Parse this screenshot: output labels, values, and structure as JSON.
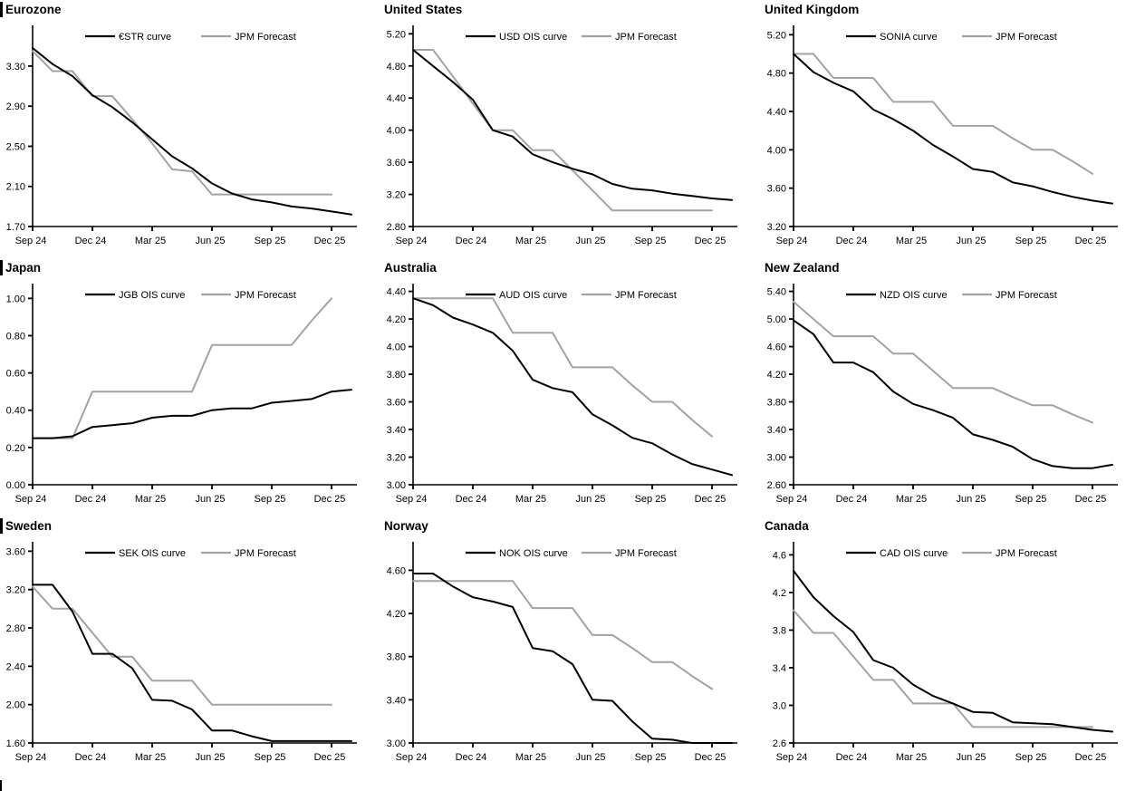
{
  "page": {
    "background": "#ffffff",
    "columns": 3,
    "rows": 3
  },
  "colors": {
    "main_line": "#000000",
    "forecast_line": "#a3a3a3",
    "axis": "#000000",
    "text": "#000000"
  },
  "chart_data": [
    {
      "type": "line",
      "title": "Eurozone",
      "section_bar": true,
      "x_ticks": [
        "Sep 24",
        "Dec 24",
        "Mar 25",
        "Jun 25",
        "Sep 25",
        "Dec 25"
      ],
      "x_tick_indices": [
        0,
        3,
        6,
        9,
        12,
        15
      ],
      "x_domain_max": 16,
      "ylim": [
        1.7,
        3.67
      ],
      "yticks": [
        "1.70",
        "2.10",
        "2.50",
        "2.90",
        "3.30"
      ],
      "grid": false,
      "legend_position": "top-center",
      "series": [
        {
          "name": "€STR curve",
          "role": "main",
          "values": [
            3.48,
            3.32,
            3.2,
            3.01,
            2.89,
            2.74,
            2.57,
            2.4,
            2.28,
            2.13,
            2.03,
            1.97,
            1.94,
            1.9,
            1.88,
            1.85,
            1.82
          ]
        },
        {
          "name": "JPM Forecast",
          "role": "forecast",
          "values": [
            3.45,
            3.25,
            3.25,
            3.0,
            3.0,
            2.77,
            2.53,
            2.27,
            2.25,
            2.02,
            2.02,
            2.02,
            2.02,
            2.02,
            2.02,
            2.02
          ]
        }
      ]
    },
    {
      "type": "line",
      "title": "United States",
      "section_bar": false,
      "x_ticks": [
        "Sep 24",
        "Dec 24",
        "Mar 25",
        "Jun 25",
        "Sep 25",
        "Dec 25"
      ],
      "x_tick_indices": [
        0,
        3,
        6,
        9,
        12,
        15
      ],
      "x_domain_max": 16,
      "ylim": [
        2.8,
        5.26
      ],
      "yticks": [
        "2.80",
        "3.20",
        "3.60",
        "4.00",
        "4.40",
        "4.80",
        "5.20"
      ],
      "grid": false,
      "legend_position": "top-center",
      "series": [
        {
          "name": "USD OIS curve",
          "role": "main",
          "values": [
            5.0,
            4.8,
            4.6,
            4.38,
            4.0,
            3.92,
            3.7,
            3.6,
            3.52,
            3.45,
            3.33,
            3.27,
            3.25,
            3.21,
            3.18,
            3.15,
            3.13
          ]
        },
        {
          "name": "JPM Forecast",
          "role": "forecast",
          "values": [
            5.0,
            5.0,
            4.67,
            4.33,
            4.0,
            4.0,
            3.75,
            3.75,
            3.5,
            3.25,
            3.0,
            3.0,
            3.0,
            3.0,
            3.0,
            3.0
          ]
        }
      ]
    },
    {
      "type": "line",
      "title": "United Kingdom",
      "section_bar": false,
      "x_ticks": [
        "Sep 24",
        "Dec 24",
        "Mar 25",
        "Jun 25",
        "Sep 25",
        "Dec 25"
      ],
      "x_tick_indices": [
        0,
        3,
        6,
        9,
        12,
        15
      ],
      "x_domain_max": 16,
      "ylim": [
        3.2,
        5.26
      ],
      "yticks": [
        "3.20",
        "3.60",
        "4.00",
        "4.40",
        "4.80",
        "5.20"
      ],
      "grid": false,
      "legend_position": "top-center",
      "series": [
        {
          "name": "SONIA curve",
          "role": "main",
          "values": [
            5.0,
            4.81,
            4.7,
            4.61,
            4.42,
            4.32,
            4.2,
            4.05,
            3.93,
            3.8,
            3.77,
            3.66,
            3.62,
            3.56,
            3.51,
            3.47,
            3.44
          ]
        },
        {
          "name": "JPM Forecast",
          "role": "forecast",
          "values": [
            5.0,
            5.0,
            4.75,
            4.75,
            4.75,
            4.5,
            4.5,
            4.5,
            4.25,
            4.25,
            4.25,
            4.12,
            4.0,
            4.0,
            3.88,
            3.75
          ]
        }
      ]
    },
    {
      "type": "line",
      "title": "Japan",
      "section_bar": true,
      "x_ticks": [
        "Sep 24",
        "Dec 24",
        "Mar 25",
        "Jun 25",
        "Sep 25",
        "Dec 25"
      ],
      "x_tick_indices": [
        0,
        3,
        6,
        9,
        12,
        15
      ],
      "x_domain_max": 16,
      "ylim": [
        0.0,
        1.06
      ],
      "yticks": [
        "0.00",
        "0.20",
        "0.40",
        "0.60",
        "0.80",
        "1.00"
      ],
      "grid": false,
      "legend_position": "top-center",
      "series": [
        {
          "name": "JGB OIS curve",
          "role": "main",
          "values": [
            0.25,
            0.25,
            0.26,
            0.31,
            0.32,
            0.33,
            0.36,
            0.37,
            0.37,
            0.4,
            0.41,
            0.41,
            0.44,
            0.45,
            0.46,
            0.5,
            0.51
          ]
        },
        {
          "name": "JPM Forecast",
          "role": "forecast",
          "values": [
            0.25,
            0.25,
            0.25,
            0.5,
            0.5,
            0.5,
            0.5,
            0.5,
            0.5,
            0.75,
            0.75,
            0.75,
            0.75,
            0.75,
            0.88,
            1.0
          ]
        }
      ]
    },
    {
      "type": "line",
      "title": "Australia",
      "section_bar": false,
      "x_ticks": [
        "Sep 24",
        "Dec 24",
        "Mar 25",
        "Jun 25",
        "Sep 25",
        "Dec 25"
      ],
      "x_tick_indices": [
        0,
        3,
        6,
        9,
        12,
        15
      ],
      "x_domain_max": 16,
      "ylim": [
        3.0,
        4.43
      ],
      "yticks": [
        "3.00",
        "3.20",
        "3.40",
        "3.60",
        "3.80",
        "4.00",
        "4.20",
        "4.40"
      ],
      "grid": false,
      "legend_position": "top-center",
      "series": [
        {
          "name": "AUD OIS curve",
          "role": "main",
          "values": [
            4.35,
            4.3,
            4.21,
            4.16,
            4.1,
            3.97,
            3.76,
            3.7,
            3.67,
            3.51,
            3.43,
            3.34,
            3.3,
            3.22,
            3.15,
            3.11,
            3.07
          ]
        },
        {
          "name": "JPM Forecast",
          "role": "forecast",
          "values": [
            4.35,
            4.35,
            4.35,
            4.35,
            4.35,
            4.1,
            4.1,
            4.1,
            3.85,
            3.85,
            3.85,
            3.72,
            3.6,
            3.6,
            3.47,
            3.35
          ]
        }
      ]
    },
    {
      "type": "line",
      "title": "New Zealand",
      "section_bar": false,
      "x_ticks": [
        "Sep 24",
        "Dec 24",
        "Mar 25",
        "Jun 25",
        "Sep 25",
        "Dec 25"
      ],
      "x_tick_indices": [
        0,
        3,
        6,
        9,
        12,
        15
      ],
      "x_domain_max": 16,
      "ylim": [
        2.6,
        5.46
      ],
      "yticks": [
        "2.60",
        "3.00",
        "3.40",
        "3.80",
        "4.20",
        "4.60",
        "5.00",
        "5.40"
      ],
      "grid": false,
      "legend_position": "top-center",
      "series": [
        {
          "name": "NZD OIS curve",
          "role": "main",
          "values": [
            4.98,
            4.78,
            4.37,
            4.37,
            4.23,
            3.95,
            3.77,
            3.68,
            3.57,
            3.33,
            3.25,
            3.15,
            2.97,
            2.87,
            2.84,
            2.84,
            2.89
          ]
        },
        {
          "name": "JPM Forecast",
          "role": "forecast",
          "values": [
            5.25,
            5.0,
            4.75,
            4.75,
            4.75,
            4.5,
            4.5,
            4.25,
            4.0,
            4.0,
            4.0,
            3.87,
            3.75,
            3.75,
            3.62,
            3.5
          ]
        }
      ]
    },
    {
      "type": "line",
      "title": "Sweden",
      "section_bar": true,
      "x_ticks": [
        "Sep 24",
        "Dec 24",
        "Mar 25",
        "Jun 25",
        "Sep 25",
        "Dec 25"
      ],
      "x_tick_indices": [
        0,
        3,
        6,
        9,
        12,
        15
      ],
      "x_domain_max": 16,
      "ylim": [
        1.6,
        3.66
      ],
      "yticks": [
        "1.60",
        "2.00",
        "2.40",
        "2.80",
        "3.20",
        "3.60"
      ],
      "grid": false,
      "legend_position": "top-center",
      "series": [
        {
          "name": "SEK OIS curve",
          "role": "main",
          "values": [
            3.25,
            3.25,
            2.97,
            2.53,
            2.53,
            2.38,
            2.05,
            2.04,
            1.95,
            1.73,
            1.73,
            1.67,
            1.62,
            1.62,
            1.62,
            1.62,
            1.62
          ]
        },
        {
          "name": "JPM Forecast",
          "role": "forecast",
          "values": [
            3.23,
            3.0,
            3.0,
            2.75,
            2.5,
            2.5,
            2.25,
            2.25,
            2.25,
            2.0,
            2.0,
            2.0,
            2.0,
            2.0,
            2.0,
            2.0
          ]
        }
      ]
    },
    {
      "type": "line",
      "title": "Norway",
      "section_bar": false,
      "x_ticks": [
        "Sep 24",
        "Dec 24",
        "Mar 25",
        "Jun 25",
        "Sep 25",
        "Dec 25"
      ],
      "x_tick_indices": [
        0,
        3,
        6,
        9,
        12,
        15
      ],
      "x_domain_max": 16,
      "ylim": [
        3.0,
        4.83
      ],
      "yticks": [
        "3.00",
        "3.40",
        "3.80",
        "4.20",
        "4.60"
      ],
      "grid": false,
      "legend_position": "top-center",
      "series": [
        {
          "name": "NOK OIS curve",
          "role": "main",
          "values": [
            4.57,
            4.57,
            4.45,
            4.35,
            4.31,
            4.26,
            3.88,
            3.85,
            3.73,
            3.4,
            3.39,
            3.2,
            3.04,
            3.03,
            3.0,
            3.0,
            3.0
          ]
        },
        {
          "name": "JPM Forecast",
          "role": "forecast",
          "values": [
            4.5,
            4.5,
            4.5,
            4.5,
            4.5,
            4.5,
            4.25,
            4.25,
            4.25,
            4.0,
            4.0,
            3.88,
            3.75,
            3.75,
            3.62,
            3.5
          ]
        }
      ]
    },
    {
      "type": "line",
      "title": "Canada",
      "section_bar": false,
      "x_ticks": [
        "Sep 24",
        "Dec 24",
        "Mar 25",
        "Jun 25",
        "Sep 25",
        "Dec 25"
      ],
      "x_tick_indices": [
        0,
        3,
        6,
        9,
        12,
        15
      ],
      "x_domain_max": 16,
      "ylim": [
        2.6,
        4.7
      ],
      "yticks": [
        "2.6",
        "3.0",
        "3.4",
        "3.8",
        "4.2",
        "4.6"
      ],
      "grid": false,
      "legend_position": "top-center",
      "series": [
        {
          "name": "CAD OIS curve",
          "role": "main",
          "values": [
            4.43,
            4.15,
            3.95,
            3.78,
            3.48,
            3.4,
            3.22,
            3.1,
            3.02,
            2.93,
            2.92,
            2.82,
            2.81,
            2.8,
            2.77,
            2.74,
            2.72
          ]
        },
        {
          "name": "JPM Forecast",
          "role": "forecast",
          "values": [
            4.01,
            3.77,
            3.77,
            3.52,
            3.27,
            3.27,
            3.02,
            3.02,
            3.02,
            2.77,
            2.77,
            2.77,
            2.77,
            2.77,
            2.77,
            2.77
          ]
        }
      ]
    }
  ]
}
